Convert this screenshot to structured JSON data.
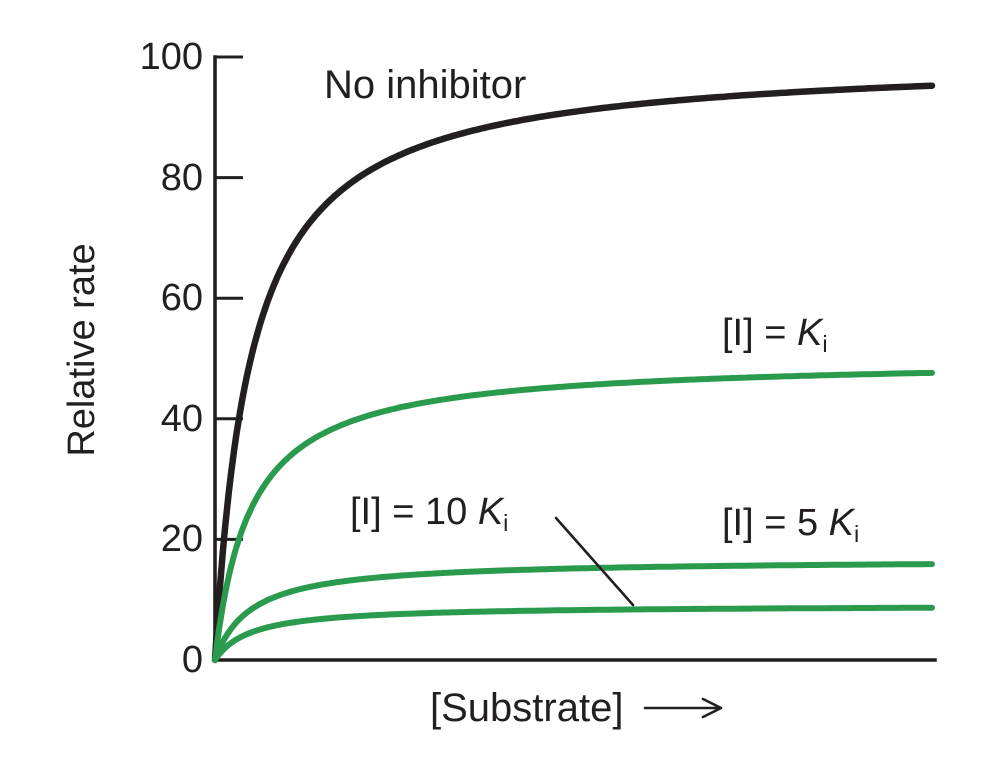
{
  "chart_data": {
    "type": "line",
    "title": "",
    "xlabel": "[Substrate]",
    "ylabel": "Relative rate",
    "xlim": [
      0,
      10
    ],
    "ylim": [
      0,
      100
    ],
    "yticks": [
      0,
      20,
      40,
      60,
      80,
      100
    ],
    "xticks": [],
    "grid": false,
    "legend_position": "inline-annotations",
    "model": "michaelis-menten v = vmax*S/(km+S), noncompetitive inhibition (vmax scaled, km unchanged)",
    "km": 0.5,
    "axis_color": "#231f20",
    "series": [
      {
        "name": "No inhibitor",
        "vmax": 100,
        "plateau_at_right_edge": 95,
        "color": "#231f20",
        "width": 6.5
      },
      {
        "name": "[I] = Ki",
        "vmax": 50,
        "plateau_at_right_edge": 48,
        "color": "#2a9a4c",
        "width": 6
      },
      {
        "name": "[I] = 5 Ki",
        "vmax": 16.7,
        "plateau_at_right_edge": 16,
        "color": "#2a9a4c",
        "width": 6
      },
      {
        "name": "[I] = 10 Ki",
        "vmax": 9.1,
        "plateau_at_right_edge": 9,
        "color": "#2a9a4c",
        "width": 6
      }
    ]
  },
  "labels": {
    "ylabel": "Relative rate",
    "no_inhibitor": "No inhibitor",
    "ki": {
      "prefix": "[I] = ",
      "symbol": "K",
      "sub": "i"
    },
    "ten_ki": {
      "prefix": "[I] = 10 ",
      "symbol": "K",
      "sub": "i"
    },
    "five_ki": {
      "prefix": "[I] = 5 ",
      "symbol": "K",
      "sub": "i"
    },
    "xlabel": "[Substrate]",
    "arrow_icon": "right-arrow"
  }
}
